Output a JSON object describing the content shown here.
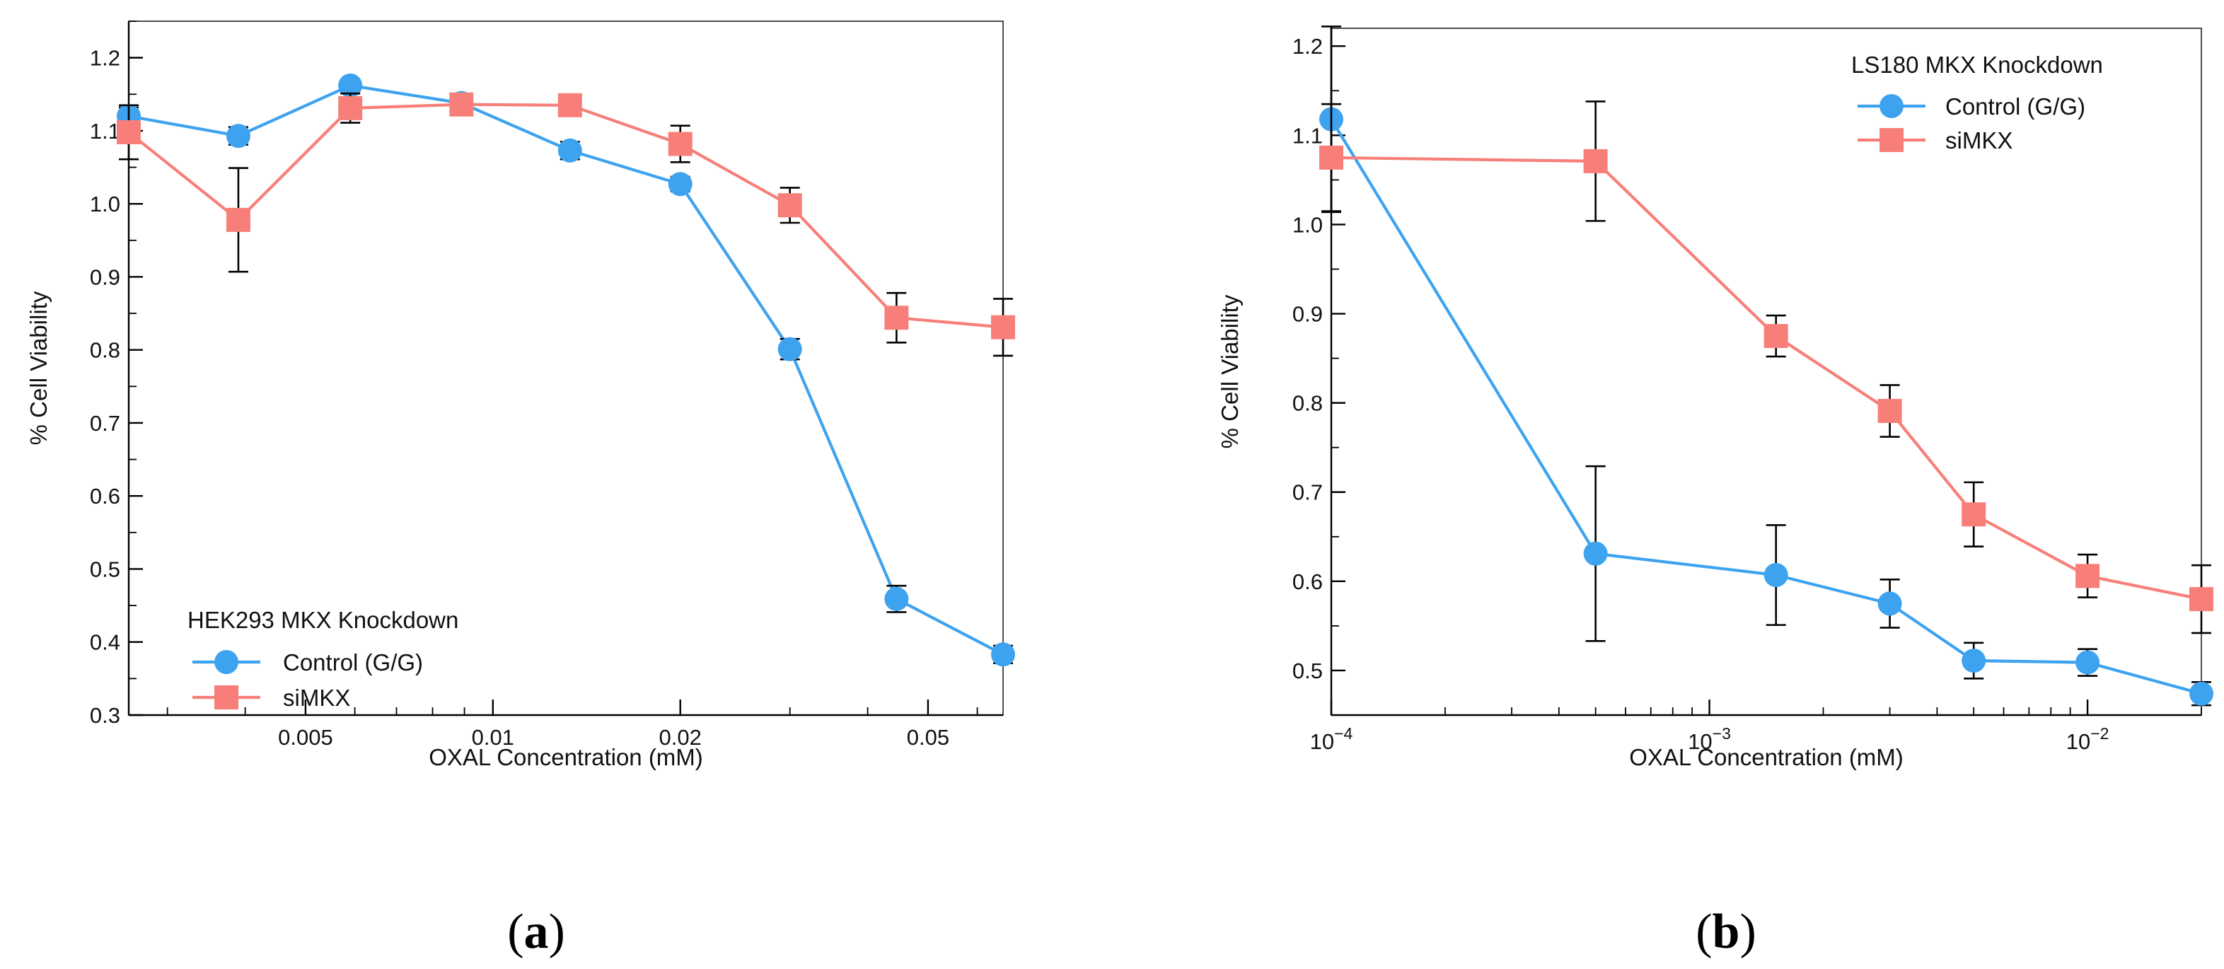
{
  "chart_data": [
    {
      "type": "line",
      "panel_label": "a",
      "xscale": "log",
      "xlabel": "OXAL Concentration (mM)",
      "ylabel": "% Cell Viability",
      "xlim": [
        0.0026,
        0.066
      ],
      "ylim": [
        0.3,
        1.25
      ],
      "xticks": [
        0.005,
        0.01,
        0.02,
        0.05
      ],
      "xtick_labels": [
        "0.005",
        "0.01",
        "0.02",
        "0.05"
      ],
      "yticks": [
        0.3,
        0.4,
        0.5,
        0.6,
        0.7,
        0.8,
        0.9,
        1.0,
        1.1,
        1.2
      ],
      "ytick_labels": [
        "0.3",
        "0.4",
        "0.5",
        "0.6",
        "0.7",
        "0.8",
        "0.9",
        "1.0",
        "1.1",
        "1.2"
      ],
      "legend": {
        "title": "HEK293 MKX Knockdown",
        "position": "bottom-left"
      },
      "series": [
        {
          "name": "Control (G/G)",
          "color": "#3ea3ef",
          "marker": "circle",
          "x": [
            0.0026,
            0.0039,
            0.0059,
            0.0089,
            0.0133,
            0.02,
            0.03,
            0.0445,
            0.066
          ],
          "y": [
            1.12,
            1.093,
            1.162,
            1.138,
            1.073,
            1.027,
            0.801,
            0.459,
            0.383
          ],
          "err": [
            0.012,
            0.012,
            0.008,
            0.008,
            0.012,
            0.01,
            0.014,
            0.018,
            0.012
          ]
        },
        {
          "name": "siMKX",
          "color": "#f87f79",
          "marker": "square",
          "x": [
            0.0026,
            0.0039,
            0.0059,
            0.0089,
            0.0133,
            0.02,
            0.03,
            0.0445,
            0.066
          ],
          "y": [
            1.098,
            0.978,
            1.131,
            1.136,
            1.135,
            1.082,
            0.998,
            0.844,
            0.831
          ],
          "err": [
            0.037,
            0.071,
            0.02,
            0.012,
            0.012,
            0.025,
            0.024,
            0.034,
            0.039
          ]
        }
      ]
    },
    {
      "type": "line",
      "panel_label": "b",
      "xscale": "log",
      "xlabel": "OXAL Concentration (mM)",
      "ylabel": "% Cell Viability",
      "xlim": [
        0.0001,
        0.02
      ],
      "ylim": [
        0.45,
        1.22
      ],
      "xticks": [
        0.0001,
        0.001,
        0.01
      ],
      "xtick_labels": [
        {
          "base": "10",
          "exp": "−4"
        },
        {
          "base": "10",
          "exp": "−3"
        },
        {
          "base": "10",
          "exp": "−2"
        }
      ],
      "yticks": [
        0.5,
        0.6,
        0.7,
        0.8,
        0.9,
        1.0,
        1.1,
        1.2
      ],
      "ytick_labels": [
        "0.5",
        "0.6",
        "0.7",
        "0.8",
        "0.9",
        "1.0",
        "1.1",
        "1.2"
      ],
      "legend": {
        "title": "LS180 MKX Knockdown",
        "position": "top-right"
      },
      "series": [
        {
          "name": "Control (G/G)",
          "color": "#3ea3ef",
          "marker": "circle",
          "x": [
            0.0001,
            0.0005,
            0.0015,
            0.003,
            0.005,
            0.01,
            0.02
          ],
          "y": [
            1.118,
            0.631,
            0.607,
            0.575,
            0.511,
            0.509,
            0.474
          ],
          "err": [
            0.104,
            0.098,
            0.056,
            0.027,
            0.02,
            0.015,
            0.013
          ]
        },
        {
          "name": "siMKX",
          "color": "#f87f79",
          "marker": "square",
          "x": [
            0.0001,
            0.0005,
            0.0015,
            0.003,
            0.005,
            0.01,
            0.02
          ],
          "y": [
            1.075,
            1.071,
            0.875,
            0.791,
            0.675,
            0.606,
            0.58
          ],
          "err": [
            0.06,
            0.067,
            0.023,
            0.029,
            0.036,
            0.024,
            0.038
          ]
        }
      ]
    }
  ]
}
